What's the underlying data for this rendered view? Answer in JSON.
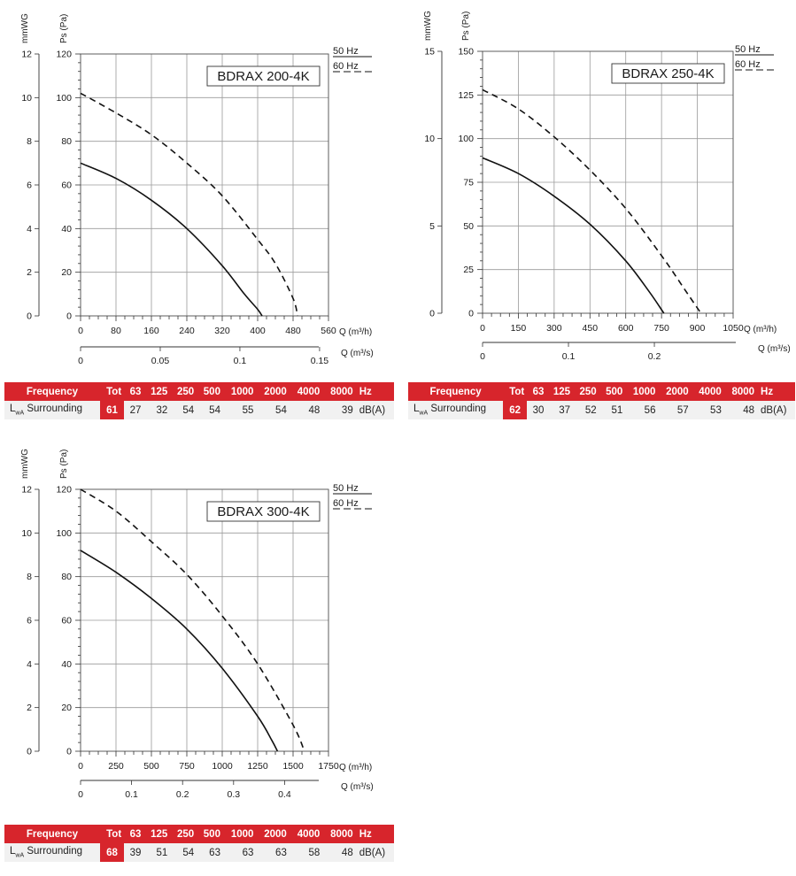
{
  "labels": {
    "mmwg": "mmWG",
    "ps": "Ps (Pa)",
    "q_m3h": "Q (m³/h)",
    "q_m3s": "Q (m³/s)",
    "legend_50": "50 Hz",
    "legend_60": "60 Hz",
    "freq_header": "Frequency",
    "tot_header": "Tot",
    "hz": "Hz",
    "dba": "dB(A)",
    "lwa_main": "L",
    "lwa_sub": "wA",
    "surrounding": "Surrounding"
  },
  "colors": {
    "accent": "#d7252c",
    "row_bg": "#f1f1f1",
    "grid": "#9a9a9a"
  },
  "chart_data": [
    {
      "type": "line",
      "title": "BDRAX 200-4K",
      "xlabel": "Q (m³/h)",
      "ylabel": "Ps (Pa)",
      "xlim": [
        0,
        560
      ],
      "ylim": [
        0,
        120
      ],
      "x_ticks": [
        "0",
        "80",
        "160",
        "240",
        "320",
        "400",
        "480",
        "560"
      ],
      "y_ticks": [
        "0",
        "20",
        "40",
        "60",
        "80",
        "100",
        "120"
      ],
      "mmwg_ticks": [
        "0",
        "2",
        "4",
        "6",
        "8",
        "10",
        "12"
      ],
      "mmwg_max": 12,
      "q_s_ticks": [
        {
          "v": 0,
          "label": "0"
        },
        {
          "v": 0.05,
          "label": "0.05"
        },
        {
          "v": 0.1,
          "label": "0.1"
        },
        {
          "v": 0.15,
          "label": "0.15"
        }
      ],
      "q_s_max": 0.1556,
      "series": [
        {
          "name": "50 Hz",
          "style": "solid",
          "x": [
            0,
            80,
            160,
            240,
            320,
            370,
            400,
            410
          ],
          "y": [
            70,
            63,
            53,
            40,
            23,
            10,
            3,
            0
          ]
        },
        {
          "name": "60 Hz",
          "style": "dashed",
          "x": [
            0,
            80,
            160,
            240,
            320,
            400,
            440,
            480,
            490
          ],
          "y": [
            102,
            93,
            83,
            70,
            55,
            35,
            24,
            8,
            0
          ]
        }
      ],
      "sound": {
        "tot": "61",
        "freqs": [
          "63",
          "125",
          "250",
          "500",
          "1000",
          "2000",
          "4000",
          "8000"
        ],
        "values": [
          "27",
          "32",
          "54",
          "54",
          "55",
          "54",
          "48",
          "39"
        ]
      }
    },
    {
      "type": "line",
      "title": "BDRAX 250-4K",
      "xlabel": "Q (m³/h)",
      "ylabel": "Ps (Pa)",
      "xlim": [
        0,
        1050
      ],
      "ylim": [
        0,
        150
      ],
      "x_ticks": [
        "0",
        "150",
        "300",
        "450",
        "600",
        "750",
        "900",
        "1050"
      ],
      "y_ticks": [
        "0",
        "25",
        "50",
        "75",
        "100",
        "125",
        "150"
      ],
      "mmwg_ticks": [
        "0",
        "5",
        "10",
        "15"
      ],
      "mmwg_max": 15,
      "q_s_ticks": [
        {
          "v": 0,
          "label": "0"
        },
        {
          "v": 0.1,
          "label": "0.1"
        },
        {
          "v": 0.2,
          "label": "0.2"
        }
      ],
      "q_s_max": 0.2917,
      "series": [
        {
          "name": "50 Hz",
          "style": "solid",
          "x": [
            0,
            150,
            300,
            450,
            600,
            700,
            760
          ],
          "y": [
            89,
            80,
            67,
            51,
            30,
            12,
            0
          ]
        },
        {
          "name": "60 Hz",
          "style": "dashed",
          "x": [
            0,
            150,
            300,
            450,
            600,
            750,
            850,
            915
          ],
          "y": [
            128,
            117,
            101,
            82,
            60,
            33,
            13,
            0
          ]
        }
      ],
      "sound": {
        "tot": "62",
        "freqs": [
          "63",
          "125",
          "250",
          "500",
          "1000",
          "2000",
          "4000",
          "8000"
        ],
        "values": [
          "30",
          "37",
          "52",
          "51",
          "56",
          "57",
          "53",
          "48"
        ]
      }
    },
    {
      "type": "line",
      "title": "BDRAX 300-4K",
      "xlabel": "Q (m³/h)",
      "ylabel": "Ps (Pa)",
      "xlim": [
        0,
        1750
      ],
      "ylim": [
        0,
        120
      ],
      "x_ticks": [
        "0",
        "250",
        "500",
        "750",
        "1000",
        "1250",
        "1500",
        "1750"
      ],
      "y_ticks": [
        "0",
        "20",
        "40",
        "60",
        "80",
        "100",
        "120"
      ],
      "mmwg_ticks": [
        "0",
        "2",
        "4",
        "6",
        "8",
        "10",
        "12"
      ],
      "mmwg_max": 12,
      "q_s_ticks": [
        {
          "v": 0,
          "label": "0"
        },
        {
          "v": 0.1,
          "label": "0.1"
        },
        {
          "v": 0.2,
          "label": "0.2"
        },
        {
          "v": 0.3,
          "label": "0.3"
        },
        {
          "v": 0.4,
          "label": "0.4"
        }
      ],
      "q_s_max": 0.4861,
      "series": [
        {
          "name": "50 Hz",
          "style": "solid",
          "x": [
            0,
            250,
            500,
            750,
            1000,
            1250,
            1350,
            1390
          ],
          "y": [
            92,
            82,
            70,
            56,
            38,
            16,
            5,
            0
          ]
        },
        {
          "name": "60 Hz",
          "style": "dashed",
          "x": [
            0,
            250,
            500,
            750,
            1000,
            1250,
            1500,
            1580
          ],
          "y": [
            120,
            110,
            96,
            81,
            62,
            40,
            12,
            0
          ]
        }
      ],
      "sound": {
        "tot": "68",
        "freqs": [
          "63",
          "125",
          "250",
          "500",
          "1000",
          "2000",
          "4000",
          "8000"
        ],
        "values": [
          "39",
          "51",
          "54",
          "63",
          "63",
          "63",
          "58",
          "48"
        ]
      }
    }
  ]
}
